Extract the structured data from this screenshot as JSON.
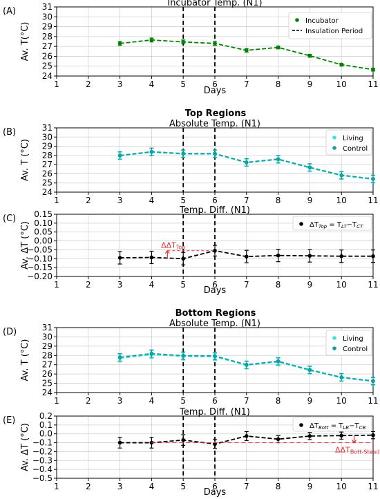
{
  "section_titles": {
    "top": "Top Regions",
    "bottom": "Bottom Regions"
  },
  "chart_data": [
    {
      "panel_label": "(A)",
      "type": "line",
      "title": "Incubator Temp. (N1)",
      "xlabel": "Days",
      "ylabel": "Av. T(°C)",
      "xlim": [
        1,
        11
      ],
      "ylim": [
        24,
        31
      ],
      "xticks": [
        1,
        2,
        3,
        4,
        5,
        6,
        7,
        8,
        9,
        10,
        11
      ],
      "yticks": [
        24,
        25,
        26,
        27,
        28,
        29,
        30,
        31
      ],
      "grid": true,
      "legend_position": "top-right",
      "insulation_period": {
        "label": "Insulation Period",
        "x": [
          5,
          6
        ]
      },
      "series": [
        {
          "name": "Incubator",
          "color": "#008000",
          "x": [
            3,
            4,
            5,
            6,
            7,
            8,
            9,
            10,
            11
          ],
          "values": [
            27.3,
            27.65,
            27.45,
            27.3,
            26.6,
            26.9,
            26.05,
            25.15,
            24.65
          ],
          "error": [
            0.2,
            0.2,
            0.2,
            0.2,
            0.18,
            0.15,
            0.15,
            0.15,
            0.15
          ]
        }
      ]
    },
    {
      "panel_label": "(B)",
      "type": "line",
      "title": "Absolute Temp. (N1)",
      "xlabel": "",
      "ylabel": "Av. T (°C)",
      "xlim": [
        1,
        11
      ],
      "ylim": [
        24,
        31
      ],
      "xticks": [
        1,
        2,
        3,
        4,
        5,
        6,
        7,
        8,
        9,
        10,
        11
      ],
      "yticks": [
        24,
        25,
        26,
        27,
        28,
        29,
        30,
        31
      ],
      "grid": true,
      "legend_position": "top-right",
      "insulation_period": {
        "x": [
          5,
          6
        ]
      },
      "series": [
        {
          "name": "Living",
          "color": "#40e0e0",
          "x": [
            3,
            4,
            5,
            6,
            7,
            8,
            9,
            10,
            11
          ],
          "values": [
            27.95,
            28.35,
            28.15,
            28.15,
            27.2,
            27.55,
            26.65,
            25.8,
            25.4
          ],
          "error": [
            0.4,
            0.4,
            0.4,
            0.4,
            0.4,
            0.4,
            0.4,
            0.4,
            0.4
          ]
        },
        {
          "name": "Control",
          "color": "#10a0a0",
          "x": [
            3,
            4,
            5,
            6,
            7,
            8,
            9,
            10,
            11
          ],
          "values": [
            28.0,
            28.4,
            28.2,
            28.2,
            27.25,
            27.6,
            26.7,
            25.85,
            25.45
          ],
          "error": [
            0.4,
            0.4,
            0.4,
            0.4,
            0.4,
            0.4,
            0.4,
            0.4,
            0.4
          ]
        }
      ]
    },
    {
      "panel_label": "(C)",
      "type": "line",
      "title": "Temp. Diff. (N1)",
      "xlabel": "Days",
      "ylabel": "Av. ΔT  (°C)",
      "xlim": [
        1,
        11
      ],
      "ylim": [
        -0.2,
        0.15
      ],
      "xticks": [
        1,
        2,
        3,
        4,
        5,
        6,
        7,
        8,
        9,
        10,
        11
      ],
      "yticks": [
        -0.2,
        -0.15,
        -0.1,
        -0.05,
        0.0,
        0.05,
        0.1,
        0.15
      ],
      "ytick_labels": [
        "−0.20",
        "−0.15",
        "−0.10",
        "−0.05",
        "0.00",
        "0.05",
        "0.10",
        "0.15"
      ],
      "grid": true,
      "legend_position": "top-right",
      "insulation_period": {
        "x": [
          5,
          6
        ]
      },
      "annotation": {
        "text": "ΔΔT",
        "sub": "Top",
        "x": 5,
        "ref_from": -0.1,
        "ref_to": -0.055
      },
      "series": [
        {
          "name": "ΔT",
          "name_sub": "Top",
          "name_eq": " = T",
          "name_sub2": "LT",
          "name_mid": "−T",
          "name_sub3": "CT",
          "color": "#000000",
          "x": [
            3,
            4,
            5,
            6,
            7,
            8,
            9,
            10,
            11
          ],
          "values": [
            -0.095,
            -0.093,
            -0.1,
            -0.055,
            -0.088,
            -0.082,
            -0.084,
            -0.086,
            -0.086
          ],
          "error": [
            0.035,
            0.035,
            0.035,
            0.03,
            0.035,
            0.035,
            0.035,
            0.035,
            0.035
          ]
        }
      ]
    },
    {
      "panel_label": "(D)",
      "type": "line",
      "title": "Absolute Temp. (N1)",
      "xlabel": "",
      "ylabel": "Av. T (°C)",
      "xlim": [
        1,
        11
      ],
      "ylim": [
        24,
        31
      ],
      "xticks": [
        1,
        2,
        3,
        4,
        5,
        6,
        7,
        8,
        9,
        10,
        11
      ],
      "yticks": [
        24,
        25,
        26,
        27,
        28,
        29,
        30,
        31
      ],
      "grid": true,
      "legend_position": "top-right",
      "insulation_period": {
        "x": [
          5,
          6
        ]
      },
      "series": [
        {
          "name": "Living",
          "color": "#40e0e0",
          "x": [
            3,
            4,
            5,
            6,
            7,
            8,
            9,
            10,
            11
          ],
          "values": [
            27.7,
            28.1,
            27.9,
            27.85,
            26.95,
            27.3,
            26.4,
            25.6,
            25.2
          ],
          "error": [
            0.4,
            0.4,
            0.4,
            0.4,
            0.4,
            0.4,
            0.4,
            0.4,
            0.4
          ]
        },
        {
          "name": "Control",
          "color": "#10a0a0",
          "x": [
            3,
            4,
            5,
            6,
            7,
            8,
            9,
            10,
            11
          ],
          "values": [
            27.8,
            28.2,
            27.98,
            27.95,
            27.0,
            27.38,
            26.45,
            25.65,
            25.25
          ],
          "error": [
            0.4,
            0.4,
            0.4,
            0.4,
            0.4,
            0.4,
            0.4,
            0.4,
            0.4
          ]
        }
      ]
    },
    {
      "panel_label": "(E)",
      "type": "line",
      "title": "Temp. Diff. (N1)",
      "xlabel": "Days",
      "ylabel": "Av. ΔT  (°C)",
      "xlim": [
        1,
        11
      ],
      "ylim": [
        -0.5,
        0.2
      ],
      "xticks": [
        1,
        2,
        3,
        4,
        5,
        6,
        7,
        8,
        9,
        10,
        11
      ],
      "yticks": [
        -0.5,
        -0.4,
        -0.3,
        -0.2,
        -0.1,
        0.0,
        0.1,
        0.2
      ],
      "ytick_labels": [
        "−0.5",
        "−0.4",
        "−0.3",
        "−0.2",
        "−0.1",
        "0.0",
        "0.1",
        "0.2"
      ],
      "grid": true,
      "legend_position": "top-right",
      "insulation_period": {
        "x": [
          5,
          6
        ]
      },
      "annotation": {
        "text": "ΔΔT",
        "sub": "Bott-Steady",
        "x": 10.4,
        "ref_from": -0.02,
        "ref_to": -0.1,
        "ref_line": -0.1
      },
      "series": [
        {
          "name": "ΔT",
          "name_sub": "Bott",
          "name_eq": " = T",
          "name_sub2": "LB",
          "name_mid": "−T",
          "name_sub3": "CB",
          "color": "#000000",
          "x": [
            3,
            4,
            5,
            6,
            7,
            8,
            9,
            10,
            11
          ],
          "values": [
            -0.1,
            -0.1,
            -0.07,
            -0.115,
            -0.025,
            -0.06,
            -0.025,
            -0.02,
            -0.015
          ],
          "error": [
            0.06,
            0.06,
            0.06,
            0.05,
            0.05,
            0.04,
            0.04,
            0.04,
            0.04
          ]
        }
      ]
    }
  ]
}
